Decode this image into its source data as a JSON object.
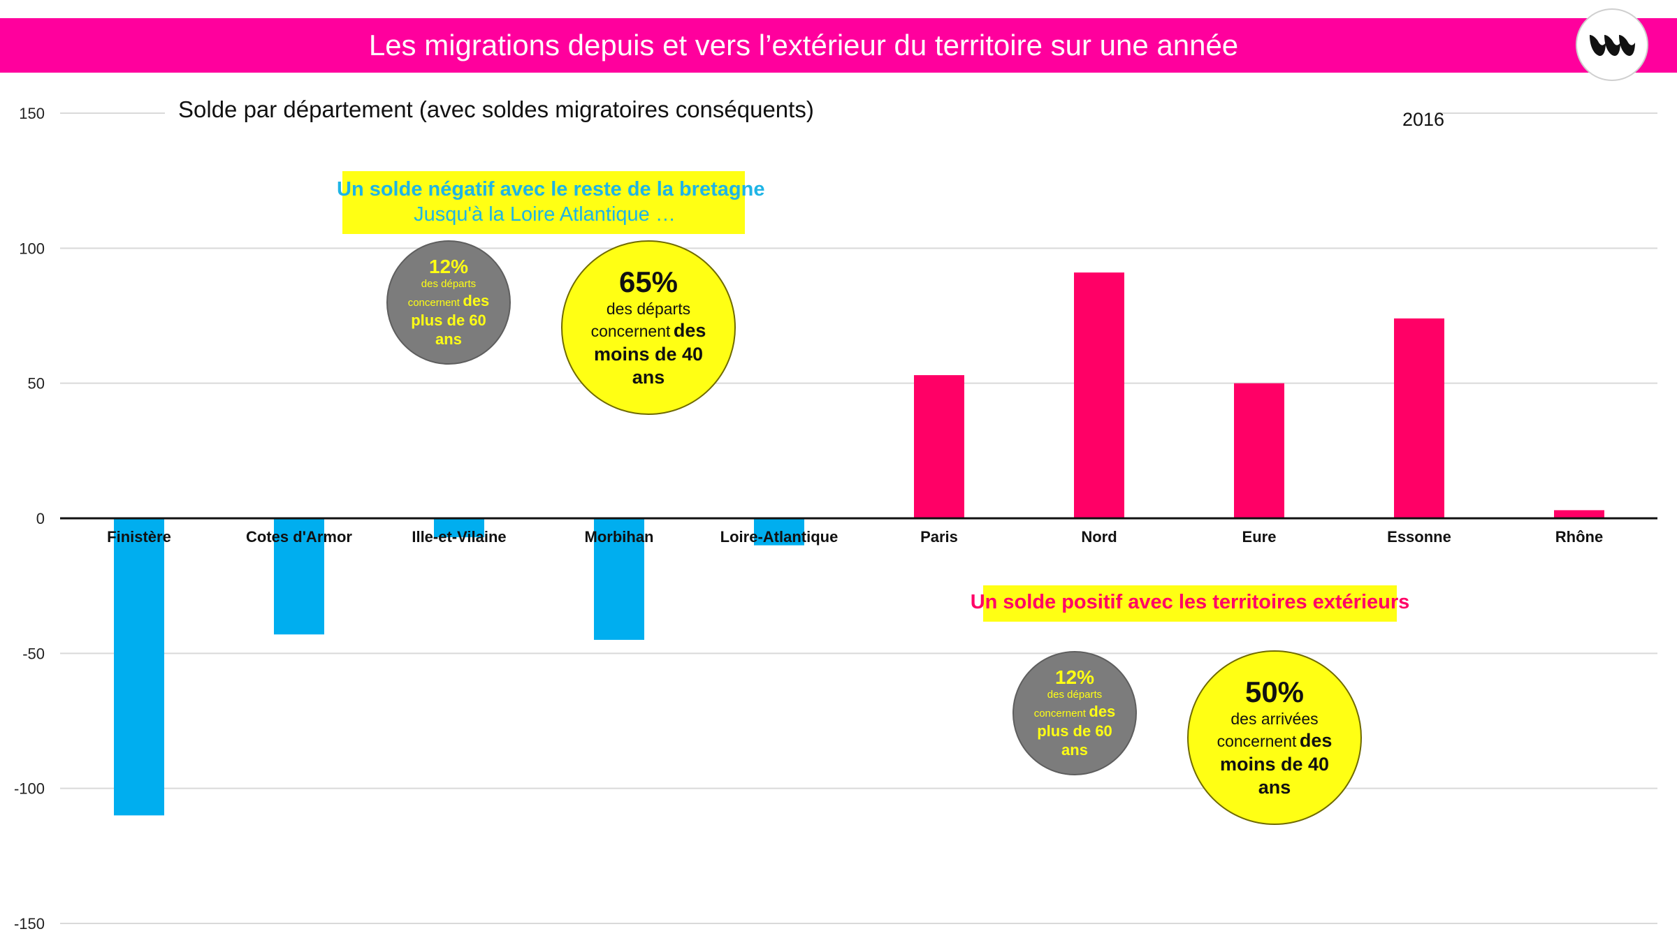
{
  "header": {
    "title": "Les migrations depuis et vers l’extérieur du territoire sur une année",
    "logo_icon": "waves-logo-icon",
    "banner_color": "#ff009d"
  },
  "chart_data": {
    "type": "bar",
    "title": "Solde par département (avec soldes migratoires conséquents)",
    "year": "2016",
    "categories": [
      "Finistère",
      "Cotes d'Armor",
      "Ille-et-Vilaine",
      "Morbihan",
      "Loire-Atlantique",
      "Paris",
      "Nord",
      "Eure",
      "Essonne",
      "Rhône"
    ],
    "values": [
      -110,
      -43,
      -7,
      -45,
      -10,
      53,
      91,
      50,
      74,
      3
    ],
    "ylim": [
      -150,
      150
    ],
    "yticks": [
      150,
      100,
      50,
      0,
      -50,
      -100,
      -150
    ],
    "grid": true,
    "colors": {
      "negative": "#00aeef",
      "positive": "#ff0066"
    }
  },
  "annotations": {
    "negative_box": {
      "line1": "Un solde négatif avec le reste de la bretagne",
      "line2": "Jusqu'à la Loire Atlantique …"
    },
    "positive_box": {
      "line1": "Un solde positif avec les territoires extérieurs"
    },
    "bubble_top_grey": {
      "pct": "12%",
      "t1": "des départs",
      "t2": "concernent",
      "t3": "des",
      "t4": "plus de 60",
      "t5": "ans"
    },
    "bubble_top_yellow": {
      "pct": "65%",
      "t1": "des départs",
      "t2": "concernent",
      "t3": "des",
      "t4": "moins de 40",
      "t5": "ans"
    },
    "bubble_bottom_grey": {
      "pct": "12%",
      "t1": "des départs",
      "t2": "concernent",
      "t3": "des",
      "t4": "plus de 60",
      "t5": "ans"
    },
    "bubble_bottom_yellow": {
      "pct": "50%",
      "t1": "des arrivées",
      "t2": "concernent",
      "t3": "des",
      "t4": "moins de 40",
      "t5": "ans"
    }
  }
}
